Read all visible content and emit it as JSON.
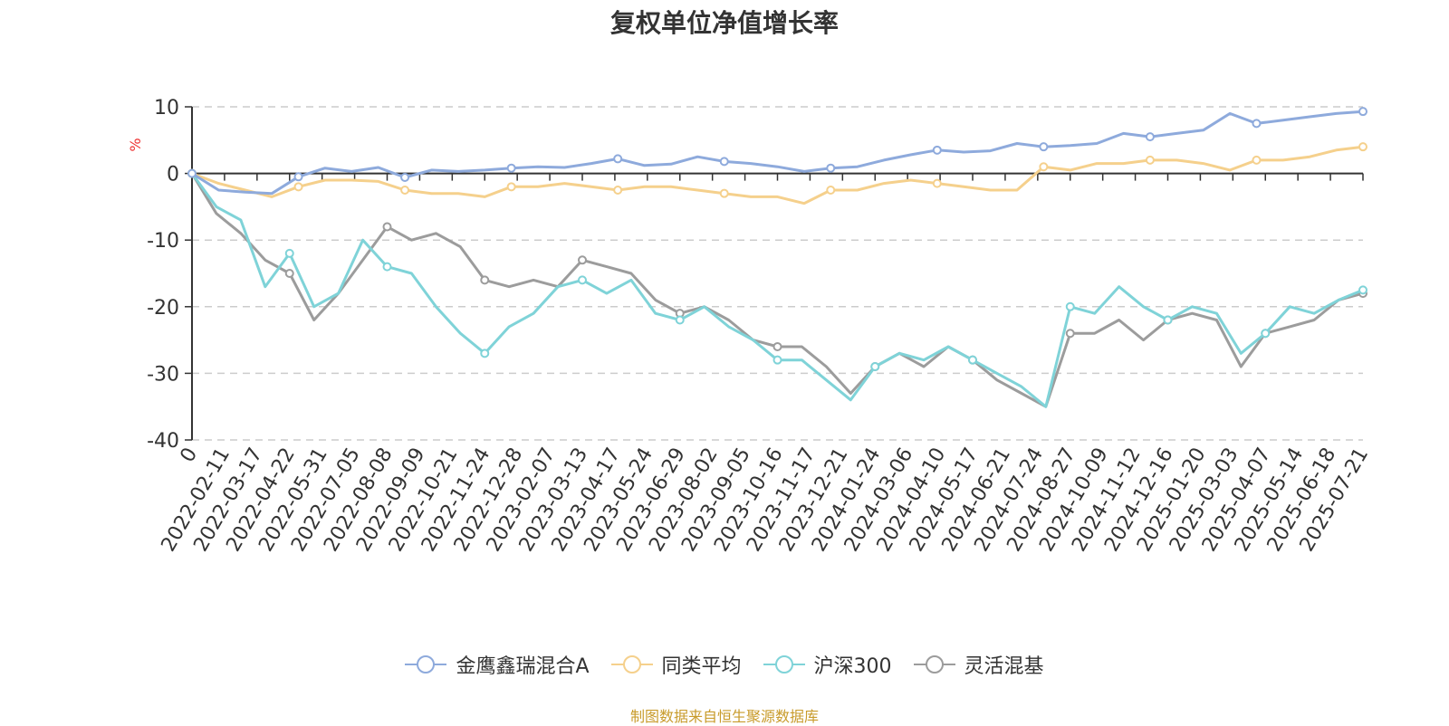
{
  "title": "复权单位净值增长率",
  "source": "制图数据来自恒生聚源数据库",
  "chart_data": {
    "type": "line",
    "ylabel": "%",
    "ylim": [
      -40,
      10
    ],
    "yticks": [
      10,
      0,
      -10,
      -20,
      -30,
      -40
    ],
    "grid": true,
    "legend_position": "bottom",
    "x_tick_labels": [
      "0",
      "2022-02-11",
      "2022-03-17",
      "2022-04-22",
      "2022-05-31",
      "2022-07-05",
      "2022-08-08",
      "2022-09-09",
      "2022-10-21",
      "2022-11-24",
      "2022-12-28",
      "2023-02-07",
      "2023-03-13",
      "2023-04-17",
      "2023-05-24",
      "2023-06-29",
      "2023-08-02",
      "2023-09-05",
      "2023-10-16",
      "2023-11-17",
      "2023-12-21",
      "2024-01-24",
      "2024-03-06",
      "2024-04-10",
      "2024-05-17",
      "2024-06-21",
      "2024-07-24",
      "2024-08-27",
      "2024-10-09",
      "2024-11-12",
      "2024-12-16",
      "2025-01-20",
      "2025-03-03",
      "2025-04-07",
      "2025-05-14",
      "2025-06-18",
      "2025-07-21"
    ],
    "series": [
      {
        "name": "金鹰鑫瑞混合A",
        "color": "#8eaadc",
        "values": [
          0,
          -2.5,
          -2.8,
          -3.0,
          -0.5,
          0.8,
          0.3,
          0.9,
          -0.6,
          0.5,
          0.3,
          0.5,
          0.8,
          1.0,
          0.9,
          1.5,
          2.2,
          1.2,
          1.4,
          2.5,
          1.8,
          1.5,
          1.0,
          0.3,
          0.8,
          1.0,
          2.0,
          2.8,
          3.5,
          3.2,
          3.4,
          4.5,
          4.0,
          4.2,
          4.5,
          6.0,
          5.5,
          6.0,
          6.5,
          9.0,
          7.5,
          8.0,
          8.5,
          9.0,
          9.3
        ]
      },
      {
        "name": "同类平均",
        "color": "#f5d08c",
        "values": [
          0,
          -1.5,
          -2.5,
          -3.5,
          -2.0,
          -1.0,
          -1.0,
          -1.2,
          -2.5,
          -3.0,
          -3.0,
          -3.5,
          -2.0,
          -2.0,
          -1.5,
          -2.0,
          -2.5,
          -2.0,
          -2.0,
          -2.5,
          -3.0,
          -3.5,
          -3.5,
          -4.5,
          -2.5,
          -2.5,
          -1.5,
          -1.0,
          -1.5,
          -2.0,
          -2.5,
          -2.5,
          1.0,
          0.5,
          1.5,
          1.5,
          2.0,
          2.0,
          1.5,
          0.5,
          2.0,
          2.0,
          2.5,
          3.5,
          4.0
        ]
      },
      {
        "name": "沪深300",
        "color": "#7fd3d8",
        "values": [
          0,
          -5,
          -7,
          -17,
          -12,
          -20,
          -18,
          -10,
          -14,
          -15,
          -20,
          -24,
          -27,
          -23,
          -21,
          -17,
          -16,
          -18,
          -16,
          -21,
          -22,
          -20,
          -23,
          -25,
          -28,
          -28,
          -31,
          -34,
          -29,
          -27,
          -28,
          -26,
          -28,
          -30,
          -32,
          -35,
          -20,
          -21,
          -17,
          -20,
          -22,
          -20,
          -21,
          -27,
          -24,
          -20,
          -21,
          -19,
          -17.5
        ]
      },
      {
        "name": "灵活混基",
        "color": "#9c9c9c",
        "values": [
          0,
          -6,
          -9,
          -13,
          -15,
          -22,
          -18,
          -13,
          -8,
          -10,
          -9,
          -11,
          -16,
          -17,
          -16,
          -17,
          -13,
          -14,
          -15,
          -19,
          -21,
          -20,
          -22,
          -25,
          -26,
          -26,
          -29,
          -33,
          -29,
          -27,
          -29,
          -26,
          -28,
          -31,
          -33,
          -35,
          -24,
          -24,
          -22,
          -25,
          -22,
          -21,
          -22,
          -29,
          -24,
          -23,
          -22,
          -19,
          -18
        ]
      }
    ]
  }
}
